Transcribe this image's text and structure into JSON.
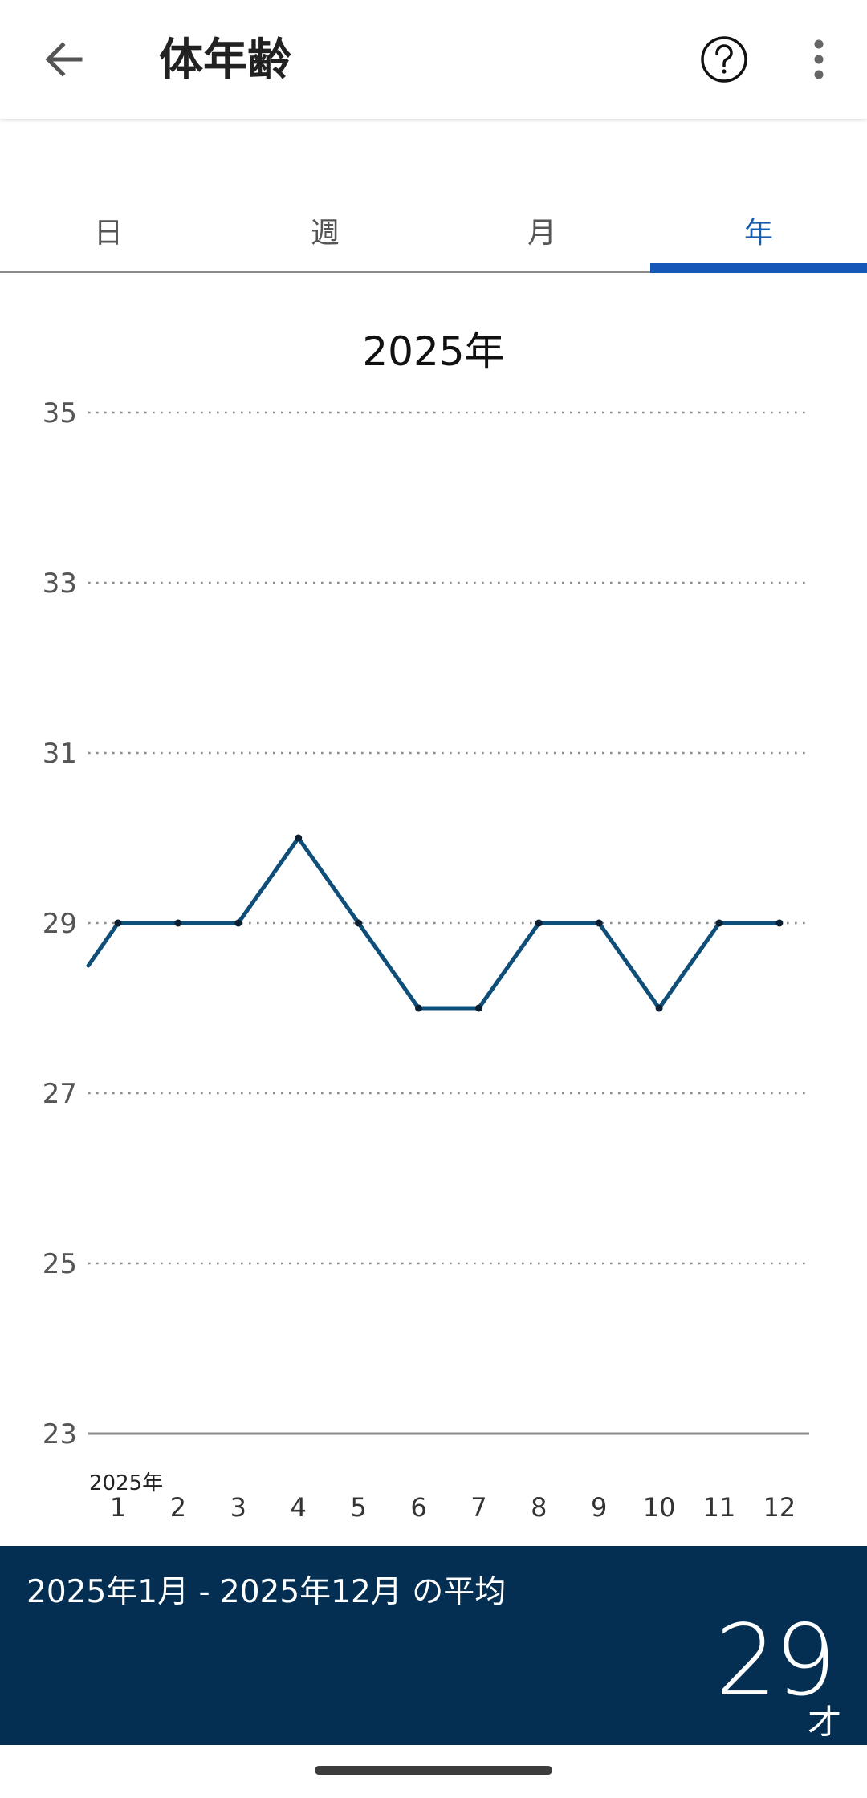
{
  "header": {
    "title": "体年齢",
    "back_icon": "arrow-left-icon",
    "help_icon": "question-circle-icon",
    "more_icon": "more-vertical-icon"
  },
  "tabs": [
    {
      "label": "日",
      "active": false
    },
    {
      "label": "週",
      "active": false
    },
    {
      "label": "月",
      "active": false
    },
    {
      "label": "年",
      "active": true
    }
  ],
  "colors": {
    "accent": "#1558b8",
    "line": "#0e4e78",
    "summary_bg": "#042f52"
  },
  "chart_data": {
    "type": "line",
    "title": "2025年",
    "x_prefix_label": "2025年",
    "categories": [
      "1",
      "2",
      "3",
      "4",
      "5",
      "6",
      "7",
      "8",
      "9",
      "10",
      "11",
      "12"
    ],
    "values": [
      29,
      29,
      29,
      30,
      29,
      28,
      28,
      29,
      29,
      28,
      29,
      29
    ],
    "previous_value": 28.5,
    "yticks": [
      23,
      25,
      27,
      29,
      31,
      33,
      35
    ],
    "ylim": [
      23,
      35
    ],
    "grid": true
  },
  "summary": {
    "label": "2025年1月 - 2025年12月 の平均",
    "value": "29",
    "unit": "才"
  }
}
